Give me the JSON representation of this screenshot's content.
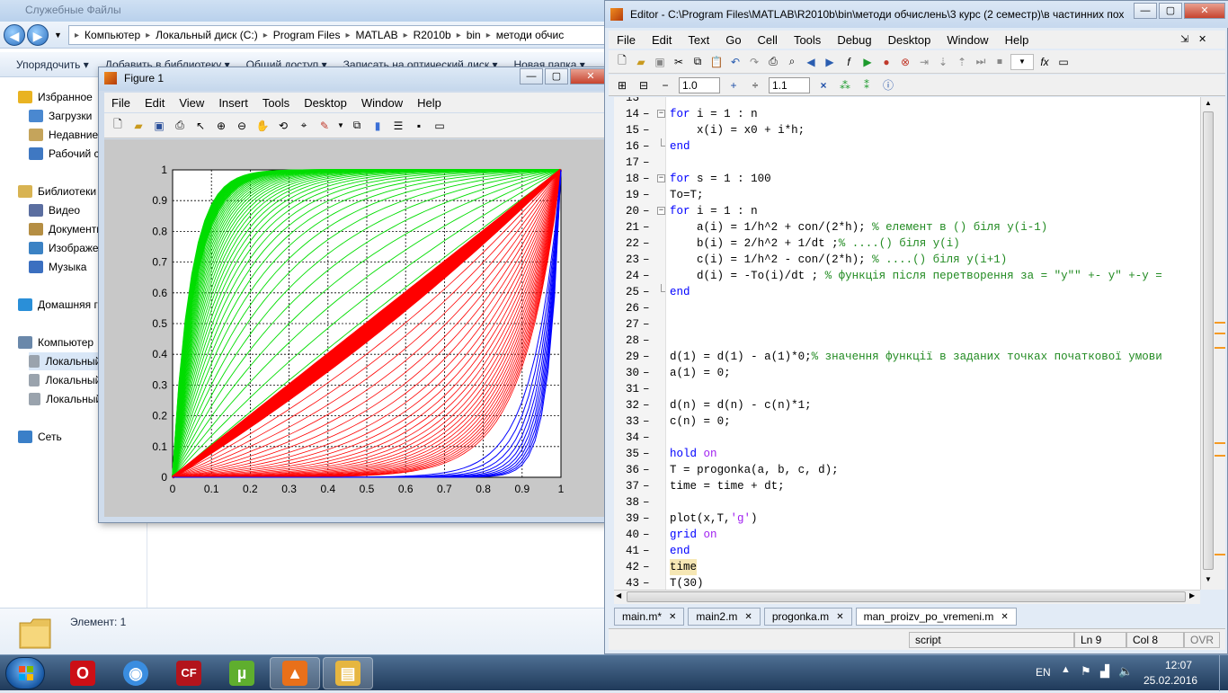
{
  "explorer": {
    "title": "Служебные Файлы",
    "breadcrumbs": [
      "Компьютер",
      "Локальный диск (C:)",
      "Program Files",
      "MATLAB",
      "R2010b",
      "bin",
      "методи обчис"
    ],
    "commands": [
      "Упорядочить",
      "Добавить в библиотеку",
      "Общий доступ",
      "Записать на оптический диск",
      "Новая папка"
    ],
    "nav": [
      {
        "label": "Избранное",
        "icon": "star-icon"
      },
      {
        "label": "Загрузки",
        "icon": "downloads-folder-icon"
      },
      {
        "label": "Недавние места",
        "icon": "recent-places-icon"
      },
      {
        "label": "Рабочий стол",
        "icon": "desktop-icon"
      },
      {
        "label": "Библиотеки",
        "icon": "libraries-icon"
      },
      {
        "label": "Видео",
        "icon": "video-icon"
      },
      {
        "label": "Документы",
        "icon": "documents-icon"
      },
      {
        "label": "Изображения",
        "icon": "pictures-icon"
      },
      {
        "label": "Музыка",
        "icon": "music-icon"
      },
      {
        "label": "Домашняя группа",
        "icon": "homegroup-icon"
      },
      {
        "label": "Компьютер",
        "icon": "computer-icon"
      },
      {
        "label": "Локальный диск (C:)",
        "icon": "drive-icon"
      },
      {
        "label": "Локальный диск (D:)",
        "icon": "drive-icon"
      },
      {
        "label": "Локальный диск (E:)",
        "icon": "drive-icon"
      },
      {
        "label": "Сеть",
        "icon": "network-icon"
      }
    ],
    "status": "Элемент: 1"
  },
  "figure": {
    "title": "Figure 1",
    "menu": [
      "File",
      "Edit",
      "View",
      "Insert",
      "Tools",
      "Desktop",
      "Window",
      "Help"
    ]
  },
  "chart_data": {
    "type": "line",
    "title": "",
    "xlabel": "",
    "ylabel": "",
    "xlim": [
      0,
      1
    ],
    "ylim": [
      0,
      1
    ],
    "xticks": [
      "0",
      "0.1",
      "0.2",
      "0.3",
      "0.4",
      "0.5",
      "0.6",
      "0.7",
      "0.8",
      "0.9",
      "1"
    ],
    "yticks": [
      "0",
      "0.1",
      "0.2",
      "0.3",
      "0.4",
      "0.5",
      "0.6",
      "0.7",
      "0.8",
      "0.9",
      "1"
    ],
    "grid": true,
    "series": [
      {
        "color": "#00dd00",
        "description": "curves rising from y=x toward y=1 (concave)",
        "x": [
          0,
          0.1,
          0.2,
          0.3,
          0.5,
          0.7,
          1
        ],
        "y": [
          0,
          0.55,
          0.8,
          0.92,
          0.98,
          0.995,
          1
        ]
      },
      {
        "color": "#ff0000",
        "description": "near-linear band along y=x",
        "x": [
          0,
          0.5,
          1
        ],
        "y": [
          0,
          0.5,
          1
        ]
      },
      {
        "color": "#0000ff",
        "description": "steep convex curves near x=1",
        "x": [
          0,
          0.6,
          0.8,
          0.9,
          0.95,
          1
        ],
        "y": [
          0,
          0.005,
          0.06,
          0.25,
          0.5,
          1
        ]
      }
    ]
  },
  "editor": {
    "title": "Editor - C:\\Program Files\\MATLAB\\R2010b\\bin\\методи обчислень\\3 курс (2 семестр)\\в частинних пох",
    "menu": [
      "File",
      "Edit",
      "Text",
      "Go",
      "Cell",
      "Tools",
      "Debug",
      "Desktop",
      "Window",
      "Help"
    ],
    "cell_minus": "−",
    "cell_value1": "1.0",
    "cell_plus": "+",
    "cell_div": "÷",
    "cell_value2": "1.1",
    "cell_times": "×",
    "lines": [
      {
        "n": "13",
        "code": ""
      },
      {
        "n": "14",
        "code": "for i = 1 : n"
      },
      {
        "n": "15",
        "code": "    x(i) = x0 + i*h;"
      },
      {
        "n": "16",
        "code": "end"
      },
      {
        "n": "17",
        "code": ""
      },
      {
        "n": "18",
        "code": "for s = 1 : 100"
      },
      {
        "n": "19",
        "code": "To=T;"
      },
      {
        "n": "20",
        "code": "for i = 1 : n"
      },
      {
        "n": "21",
        "code": "    a(i) = 1/h^2 + con/(2*h); % елемент в () біля y(i-1)"
      },
      {
        "n": "22",
        "code": "    b(i) = 2/h^2 + 1/dt ;% ....() біля y(i)"
      },
      {
        "n": "23",
        "code": "    c(i) = 1/h^2 - con/(2*h); % ....() біля y(i+1)"
      },
      {
        "n": "24",
        "code": "    d(i) = -To(i)/dt ; % функція після перетворення за = \"y\"\" +- y\" +-y ="
      },
      {
        "n": "25",
        "code": "end"
      },
      {
        "n": "26",
        "code": ""
      },
      {
        "n": "27",
        "code": ""
      },
      {
        "n": "28",
        "code": ""
      },
      {
        "n": "29",
        "code": "d(1) = d(1) - a(1)*0;% значення функції в заданих точках початкової умови"
      },
      {
        "n": "30",
        "code": "a(1) = 0;"
      },
      {
        "n": "31",
        "code": ""
      },
      {
        "n": "32",
        "code": "d(n) = d(n) - c(n)*1;"
      },
      {
        "n": "33",
        "code": "c(n) = 0;"
      },
      {
        "n": "34",
        "code": ""
      },
      {
        "n": "35",
        "code": "hold on"
      },
      {
        "n": "36",
        "code": "T = progonka(a, b, c, d);"
      },
      {
        "n": "37",
        "code": "time = time + dt;"
      },
      {
        "n": "38",
        "code": ""
      },
      {
        "n": "39",
        "code": "plot(x,T,'g')"
      },
      {
        "n": "40",
        "code": "grid on"
      },
      {
        "n": "41",
        "code": "end"
      },
      {
        "n": "42",
        "code": "time"
      },
      {
        "n": "43",
        "code": "T(30)"
      }
    ],
    "tabs": [
      "main.m*",
      "main2.m",
      "progonka.m",
      "man_proizv_po_vremeni.m"
    ],
    "status_mode": "script",
    "status_ln": "Ln  9",
    "status_col": "Col  8",
    "status_ovr": "OVR"
  },
  "taskbar": {
    "lang": "EN",
    "time": "12:07",
    "date": "25.02.2016",
    "apps": [
      {
        "name": "opera-icon",
        "color": "#cc0f16",
        "glyph": "O"
      },
      {
        "name": "chrome-icon",
        "color": "#3a8de0",
        "glyph": "◉"
      },
      {
        "name": "coldfusion-icon",
        "color": "#b3141c",
        "glyph": "CF"
      },
      {
        "name": "utorrent-icon",
        "color": "#5fae2e",
        "glyph": "µ"
      },
      {
        "name": "matlab-icon",
        "color": "#e8701a",
        "glyph": "▲"
      },
      {
        "name": "explorer-icon",
        "color": "#e6b640",
        "glyph": "▤"
      }
    ]
  }
}
